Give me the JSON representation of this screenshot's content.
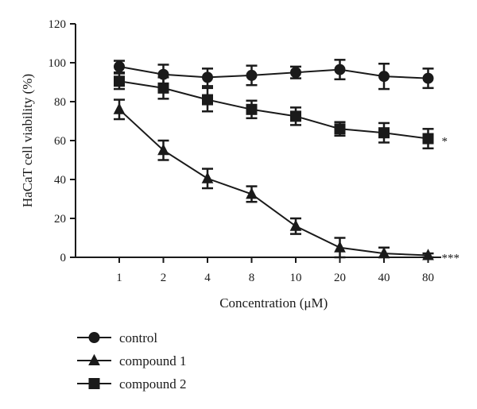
{
  "chart_data": {
    "type": "line",
    "title": "",
    "xlabel": "Concentration (μM)",
    "ylabel": "HaCaT cell viability (%)",
    "categories": [
      "1",
      "2",
      "4",
      "8",
      "10",
      "20",
      "40",
      "80"
    ],
    "yticks": [
      "0",
      "20",
      "40",
      "60",
      "80",
      "100",
      "120"
    ],
    "ylim": [
      0,
      120
    ],
    "grid": false,
    "legend_position": "bottom-left",
    "series": [
      {
        "name": "control",
        "marker": "circle",
        "color": "#1a1a1a",
        "values": [
          98,
          94,
          92.5,
          93.5,
          95,
          96.5,
          93,
          92
        ],
        "errors": [
          3,
          5,
          4.5,
          5,
          3,
          5,
          6.5,
          5
        ]
      },
      {
        "name": "compound 1",
        "marker": "triangle",
        "color": "#1a1a1a",
        "values": [
          76,
          55,
          40.5,
          32.5,
          16,
          5,
          2,
          1
        ],
        "errors": [
          5,
          5,
          5,
          4,
          4,
          5,
          3,
          1
        ]
      },
      {
        "name": "compound 2",
        "marker": "square",
        "color": "#1a1a1a",
        "values": [
          90.5,
          87,
          81,
          76,
          72.5,
          66,
          64,
          61
        ],
        "errors": [
          4,
          5.5,
          6,
          4.5,
          4.5,
          3.5,
          5,
          5
        ]
      }
    ],
    "significance": [
      {
        "series": "compound 2",
        "label": "*"
      },
      {
        "series": "compound 1",
        "label": "***"
      }
    ]
  }
}
